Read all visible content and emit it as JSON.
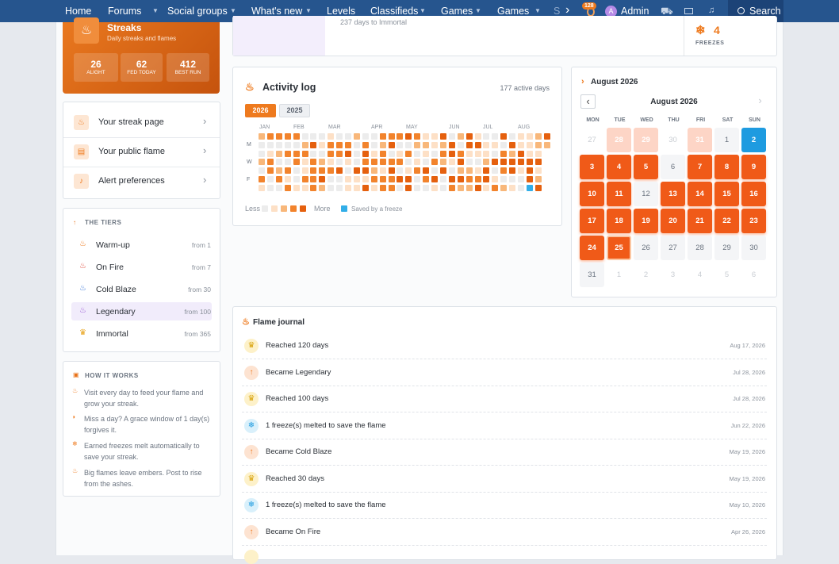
{
  "nav": {
    "items": [
      "Home",
      "Forums",
      "Social groups",
      "What's new",
      "Levels",
      "Classifieds",
      "Games",
      "Games",
      "S"
    ],
    "badge": "128",
    "avatar": "A",
    "user": "Admin",
    "search": "Search"
  },
  "streaks": {
    "title": "Streaks",
    "subtitle": "Daily streaks and flames",
    "stats": [
      {
        "value": "26",
        "label": "ALIGHT"
      },
      {
        "value": "62",
        "label": "FED TODAY"
      },
      {
        "value": "412",
        "label": "BEST RUN"
      }
    ]
  },
  "links": [
    "Your streak page",
    "Your public flame",
    "Alert preferences"
  ],
  "tiers": {
    "heading": "THE TIERS",
    "rows": [
      {
        "name": "Warm-up",
        "from": "from 1"
      },
      {
        "name": "On Fire",
        "from": "from 7"
      },
      {
        "name": "Cold Blaze",
        "from": "from 30"
      },
      {
        "name": "Legendary",
        "from": "from 100"
      },
      {
        "name": "Immortal",
        "from": "from 365"
      }
    ]
  },
  "how": {
    "heading": "HOW IT WORKS",
    "items": [
      "Visit every day to feed your flame and grow your streak.",
      "Miss a day? A grace window of 1 day(s) forgives it.",
      "Earned freezes melt automatically to save your streak.",
      "Big flames leave embers. Post to rise from the ashes."
    ]
  },
  "top": {
    "days_text": "237 days to Immortal",
    "freezes": "4",
    "freezes_label": "FREEZES"
  },
  "activity": {
    "title": "Activity log",
    "summary": "177 active days",
    "years": [
      "2026",
      "2025"
    ],
    "months": [
      "JAN",
      "FEB",
      "MAR",
      "APR",
      "MAY",
      "JUN",
      "JUL",
      "AUG"
    ],
    "weekdays": [
      "M",
      "W",
      "F"
    ],
    "less": "Less",
    "more": "More",
    "freeze": "Saved by a freeze"
  },
  "calendar": {
    "heading": "August 2026",
    "month": "August 2026",
    "weekdays": [
      "MON",
      "TUE",
      "WED",
      "THU",
      "FRI",
      "SAT",
      "SUN"
    ],
    "days": [
      "27",
      "28",
      "29",
      "30",
      "31",
      "1",
      "2",
      "3",
      "4",
      "5",
      "6",
      "7",
      "8",
      "9",
      "10",
      "11",
      "12",
      "13",
      "14",
      "15",
      "16",
      "17",
      "18",
      "19",
      "20",
      "21",
      "22",
      "23",
      "24",
      "25",
      "26",
      "27",
      "28",
      "29",
      "30",
      "31",
      "1",
      "2",
      "3",
      "4",
      "5",
      "6"
    ]
  },
  "journal": {
    "title": "Flame journal",
    "entries": [
      {
        "text": "Reached 120 days",
        "date": "Aug 17, 2026"
      },
      {
        "text": "Became Legendary",
        "date": "Jul 28, 2026"
      },
      {
        "text": "Reached 100 days",
        "date": "Jul 28, 2026"
      },
      {
        "text": "1 freeze(s) melted to save the flame",
        "date": "Jun 22, 2026"
      },
      {
        "text": "Became Cold Blaze",
        "date": "May 19, 2026"
      },
      {
        "text": "Reached 30 days",
        "date": "May 19, 2026"
      },
      {
        "text": "1 freeze(s) melted to save the flame",
        "date": "May 10, 2026"
      },
      {
        "text": "Became On Fire",
        "date": "Apr 26, 2026"
      }
    ]
  }
}
